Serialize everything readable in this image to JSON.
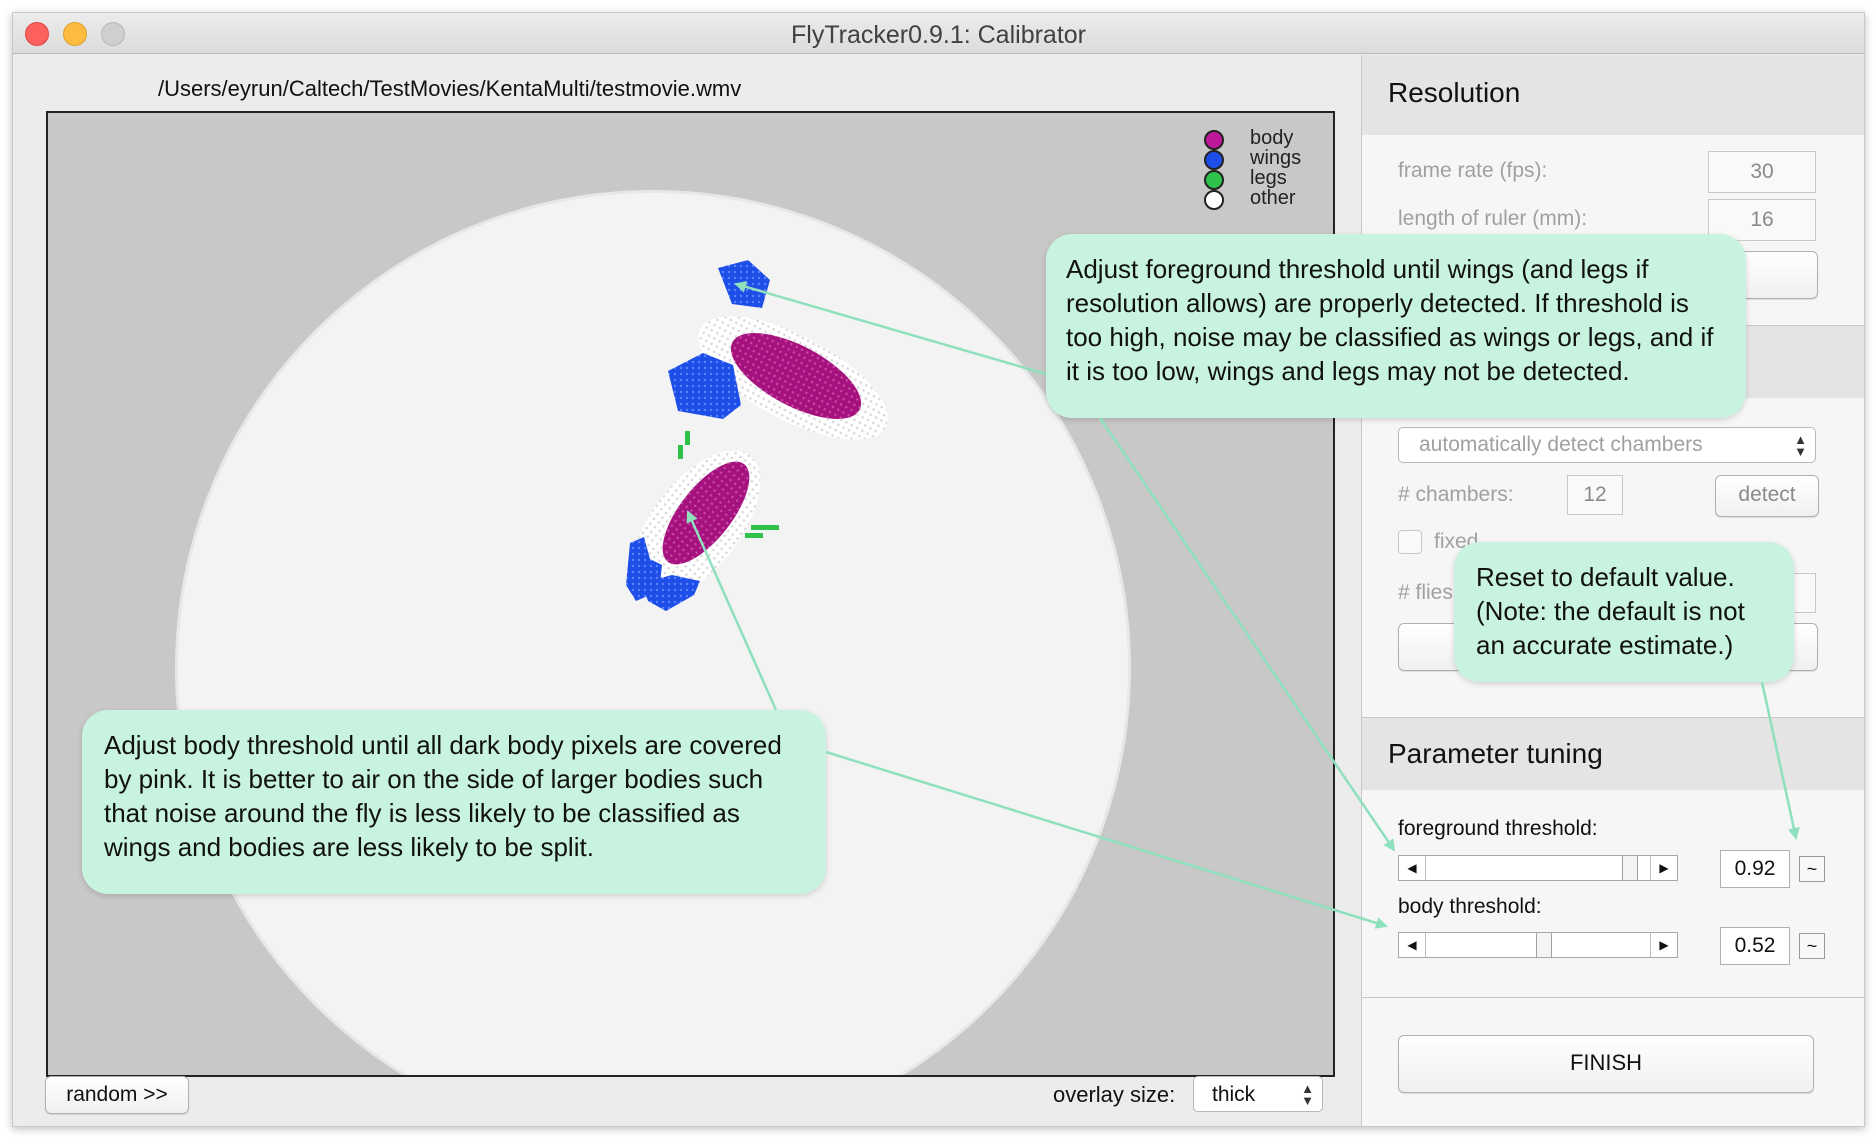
{
  "window": {
    "title": "FlyTracker0.9.1: Calibrator"
  },
  "video": {
    "file_path": "/Users/eyrun/Caltech/TestMovies/KentaMulti/testmovie.wmv",
    "legend": [
      {
        "label": "body",
        "color": "#c0189a"
      },
      {
        "label": "wings",
        "color": "#1d4fe8"
      },
      {
        "label": "legs",
        "color": "#2ec24a"
      },
      {
        "label": "other",
        "color": "#ffffff"
      }
    ],
    "random_label": "random >>",
    "overlay_size_label": "overlay size:",
    "overlay_size_value": "thick"
  },
  "resolution": {
    "title": "Resolution",
    "frame_rate_label": "frame rate (fps):",
    "frame_rate_value": "30",
    "ruler_label": "length of ruler (mm):",
    "ruler_value": "16"
  },
  "chambers": {
    "detect_mode": "automatically detect chambers",
    "count_label": "# chambers:",
    "count_value": "12",
    "detect_label": "detect",
    "fixed_label": "fixed",
    "flies_label": "# flies"
  },
  "tuning": {
    "title": "Parameter tuning",
    "fg_label": "foreground threshold:",
    "fg_value": "0.92",
    "fg_level": 0.92,
    "body_label": "body threshold:",
    "body_value": "0.52",
    "body_level": 0.52,
    "reset_symbol": "~",
    "finish_label": "FINISH"
  },
  "callouts": {
    "foreground": "Adjust foreground threshold until wings (and legs if resolution allows) are properly detected. If threshold is too high, noise may be classified as wings or legs, and if it is too low, wings and legs may not be detected.",
    "reset": "Reset to default value. (Note: the default is not an accurate estimate.)",
    "body": "Adjust body threshold until all dark body pixels are covered by pink. It is better to air on the side of larger bodies such that noise around the fly is less likely to be classified as wings and bodies are less likely to be split."
  }
}
